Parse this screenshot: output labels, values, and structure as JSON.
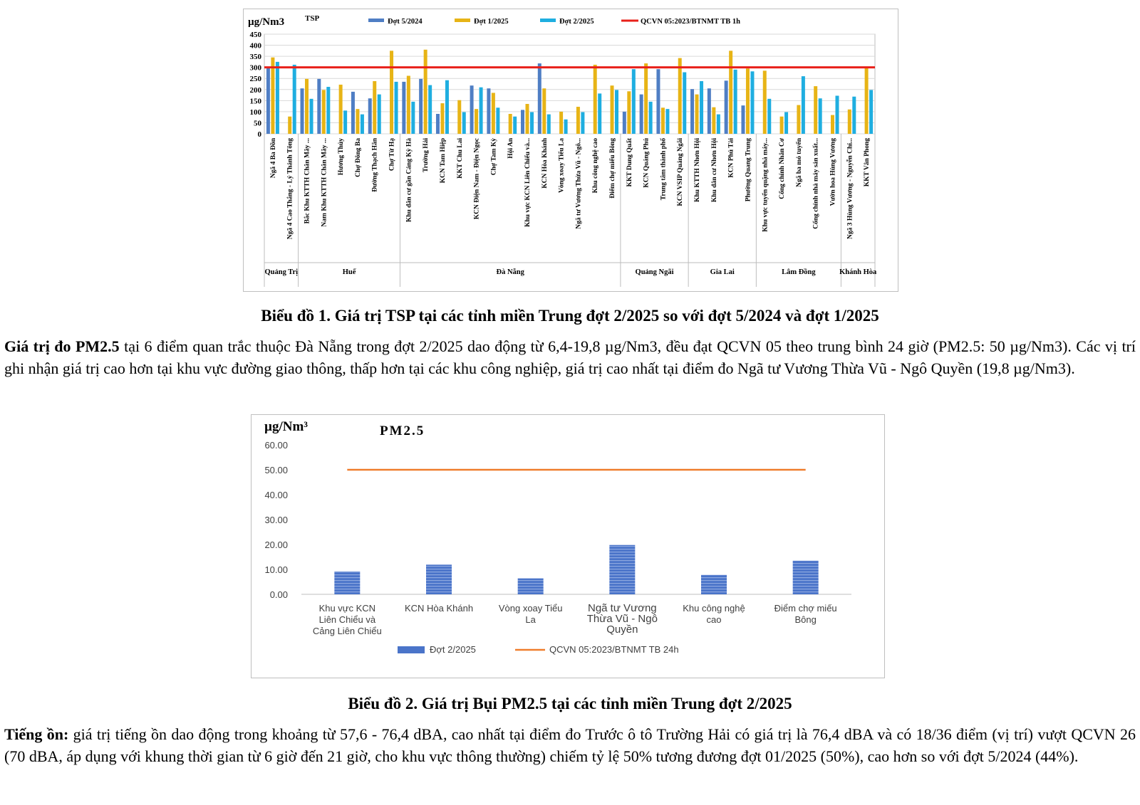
{
  "figure1": {
    "caption": "Biểu đồ 1. Giá trị TSP tại các tỉnh miền Trung đợt 2/2025 so với đợt 5/2024 và đợt 1/2025",
    "chart_data": {
      "type": "bar",
      "title": "TSP",
      "ylabel": "µg/Nm3",
      "ylim": [
        0,
        450
      ],
      "yticks": [
        0,
        50,
        100,
        150,
        200,
        250,
        300,
        350,
        400,
        450
      ],
      "legend": [
        "Đợt 5/2024",
        "Đợt 1/2025",
        "Đợt 2/2025",
        "QCVN 05:2023/BTNMT TB 1h"
      ],
      "colors": {
        "s1": "#4f7ec4",
        "s2": "#e7b416",
        "s3": "#1faee0",
        "limit": "#e8201a"
      },
      "limit_value": 300,
      "categories": [
        "Ngã 4 Ba Đồn",
        "Ngã 4 Cao Thắng - Lý Thánh Tông",
        "Bắc Khu KTTH Chân Mây ...",
        "Nam Khu KTTH Chân Mây ...",
        "Hương Thủy",
        "Chợ Đông Ba",
        "Đường Thạch Hãn",
        "Chợ Từ Hạ",
        "Khu dân cư gần Cảng Kỳ Hà",
        "Trường Hải",
        "KCN Tam Hiệp",
        "KKT Chu Lai",
        "KCN Điện Nam - Điện Ngọc",
        "Chợ Tam Kỳ",
        "Hội An",
        "Khu vực KCN Liên Chiểu và...",
        "KCN Hòa Khánh",
        "Vòng xoay Tiểu La",
        "Ngã tư Vương Thừa Vũ - Ngô...",
        "Khu công nghệ cao",
        "Điểm chợ miếu Bông",
        "KKT Dung Quất",
        "KCN Quảng Phú",
        "Trung tâm thành phố",
        "KCN VSIP Quảng Ngãi",
        "Khu KTTH Nhơn Hội",
        "Khu dân cư Nhơn Hội",
        "KCN Phú Tài",
        "Phường Quang Trung",
        "Khu vực tuyển quặng nhà máy...",
        "Cổng chính Nhân Cơ",
        "Ngã ba mỏ tuyển",
        "Cổng chính nhà máy sản xuất...",
        "Vườn hoa Hùng Vương",
        "Ngã 3 Hùng Vương - Nguyễn Chí...",
        "KKT Vân Phong"
      ],
      "series": [
        {
          "name": "Đợt 5/2024",
          "values": [
            300,
            0,
            205,
            248,
            0,
            190,
            160,
            0,
            235,
            248,
            90,
            0,
            218,
            205,
            0,
            108,
            318,
            0,
            0,
            0,
            0,
            100,
            178,
            292,
            0,
            202,
            205,
            240,
            128,
            0,
            0,
            0,
            0,
            0,
            0,
            0
          ]
        },
        {
          "name": "Đợt 1/2025",
          "values": [
            345,
            78,
            248,
            198,
            222,
            112,
            238,
            375,
            262,
            380,
            138,
            152,
            112,
            185,
            90,
            135,
            205,
            100,
            122,
            312,
            218,
            192,
            318,
            118,
            342,
            178,
            120,
            375,
            295,
            285,
            78,
            130,
            215,
            85,
            110,
            298
          ]
        },
        {
          "name": "Đợt 2/2025",
          "values": [
            325,
            312,
            158,
            212,
            105,
            88,
            178,
            235,
            145,
            220,
            242,
            98,
            210,
            118,
            78,
            98,
            88,
            65,
            98,
            182,
            198,
            292,
            145,
            112,
            278,
            238,
            88,
            290,
            282,
            158,
            98,
            260,
            160,
            172,
            168,
            198
          ]
        }
      ],
      "groups": [
        {
          "name": "Quảng Trị",
          "count": 2
        },
        {
          "name": "Huế",
          "count": 6
        },
        {
          "name": "Đà Nẵng",
          "count": 13
        },
        {
          "name": "Quảng Ngãi",
          "count": 4
        },
        {
          "name": "Gia Lai",
          "count": 4
        },
        {
          "name": "Lâm Đồng",
          "count": 5
        },
        {
          "name": "Khánh Hòa",
          "count": 2
        }
      ]
    }
  },
  "paragraph1": {
    "lead": "Giá trị đo PM2.5",
    "text": " tại 6 điểm quan trắc thuộc Đà Nẵng trong đợt 2/2025 dao động từ 6,4-19,8 µg/Nm3, đều đạt QCVN 05 theo trung bình 24 giờ (PM2.5: 50 µg/Nm3). Các vị trí ghi nhận giá trị cao hơn tại khu vực đường giao thông, thấp hơn tại các khu công nghiệp, giá trị cao nhất tại điểm đo Ngã tư Vương Thừa Vũ - Ngô Quyền (19,8 µg/Nm3)."
  },
  "figure2": {
    "caption": "Biểu đồ 2. Giá trị Bụi PM2.5 tại các tỉnh miền Trung đợt 2/2025",
    "chart_data": {
      "type": "bar",
      "title": "PM2.5",
      "ylabel": "µg/Nm³",
      "ylim": [
        0,
        60
      ],
      "yticks": [
        "0.00",
        "10.00",
        "20.00",
        "30.00",
        "40.00",
        "50.00",
        "60.00"
      ],
      "categories": [
        "Khu vực KCN Liên Chiểu và Cảng Liên Chiểu",
        "KCN Hòa Khánh",
        "Vòng xoay Tiểu La",
        "Ngã tư Vương Thừa Vũ - Ngô Quyền",
        "Khu công nghệ cao",
        "Điểm chợ miếu Bông"
      ],
      "category_lines": [
        [
          "Khu vực KCN",
          "Liên Chiểu và",
          "Cảng Liên Chiểu"
        ],
        [
          "KCN Hòa Khánh"
        ],
        [
          "Vòng xoay Tiểu",
          "La"
        ],
        [
          "Ngã tư Vương",
          "Thừa Vũ - Ngô",
          "Quyền"
        ],
        [
          "Khu công nghệ",
          "cao"
        ],
        [
          "Điểm chợ miếu",
          "Bông"
        ]
      ],
      "series": [
        {
          "name": "Đợt 2/2025",
          "values": [
            9.2,
            11.9,
            6.4,
            19.8,
            7.8,
            13.5
          ]
        }
      ],
      "limit_value": 50,
      "legend": [
        "Đợt 2/2025",
        "QCVN 05:2023/BTNMT  TB 24h"
      ],
      "colors": {
        "bar": "#4a74c9",
        "limit": "#ef7d2c"
      }
    }
  },
  "paragraph2": {
    "lead": "Tiếng ồn:",
    "text": " giá trị tiếng ồn dao động trong khoảng từ 57,6 - 76,4 dBA, cao nhất tại điểm đo Trước ô tô Trường Hải có giá trị là 76,4 dBA và có 18/36 điểm (vị trí) vượt QCVN 26 (70 dBA, áp dụng với khung thời gian từ 6 giờ đến 21 giờ, cho khu vực thông thường) chiếm tỷ lệ 50% tương đương đợt 01/2025 (50%), cao hơn so với đợt 5/2024 (44%)."
  }
}
